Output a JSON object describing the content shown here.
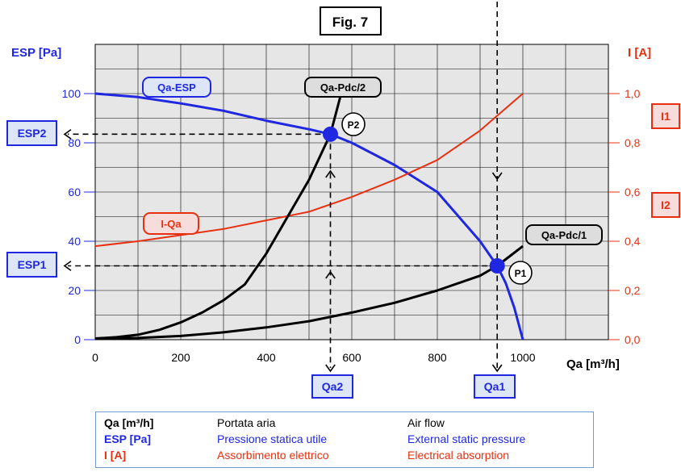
{
  "figure_title": "Fig. 7",
  "colors": {
    "blue": "#1f28e0",
    "red": "#e83010",
    "black": "#000000",
    "plot_bg": "#e6e6e6",
    "label_fill": "#dde6f7",
    "red_label_fill": "#f7dcdc",
    "gray_label_fill": "#dddddd"
  },
  "chart_data": {
    "type": "line",
    "xlabel": "Qa [m³/h]",
    "ylabel_left": "ESP [Pa]",
    "ylabel_right": "I [A]",
    "xlim": [
      0,
      1000
    ],
    "ylim_left": [
      0,
      100
    ],
    "ylim_right": [
      0.0,
      1.0
    ],
    "x_ticks": [
      "0",
      "200",
      "400",
      "600",
      "800",
      "1000"
    ],
    "y_left_ticks": [
      "0",
      "20",
      "40",
      "60",
      "80",
      "100"
    ],
    "y_right_ticks": [
      "0,0",
      "0,2",
      "0,4",
      "0,6",
      "0,8",
      "1,0"
    ],
    "grid": true,
    "series": [
      {
        "name": "Qa-ESP",
        "axis": "left",
        "color": "#1f28e0",
        "x": [
          0,
          100,
          200,
          300,
          400,
          500,
          550,
          600,
          700,
          800,
          900,
          940,
          960,
          980,
          1000
        ],
        "y": [
          100,
          98.6,
          96,
          93,
          89,
          85.5,
          83.5,
          80,
          71,
          60,
          40,
          30,
          23,
          13,
          0
        ]
      },
      {
        "name": "I-Qa",
        "axis": "right",
        "color": "#e83010",
        "x": [
          0,
          100,
          200,
          300,
          400,
          500,
          550,
          600,
          700,
          800,
          900,
          940,
          1000
        ],
        "y": [
          0.38,
          0.4,
          0.425,
          0.45,
          0.485,
          0.52,
          0.55,
          0.58,
          0.65,
          0.73,
          0.85,
          0.91,
          1.0
        ]
      },
      {
        "name": "Qa-Pdc/1",
        "axis": "left",
        "color": "#000000",
        "x": [
          0,
          100,
          200,
          300,
          400,
          500,
          600,
          700,
          800,
          900,
          940,
          1000
        ],
        "y": [
          0.5,
          0.7,
          1.5,
          3,
          5,
          7.5,
          11,
          15,
          20,
          26,
          30,
          38
        ]
      },
      {
        "name": "Qa-Pdc/2",
        "axis": "left",
        "color": "#000000",
        "x": [
          0,
          50,
          100,
          150,
          200,
          250,
          300,
          350,
          400,
          450,
          500,
          550,
          575
        ],
        "y": [
          0.5,
          1,
          2,
          4,
          7,
          11,
          16,
          22.5,
          35,
          50,
          65,
          83.5,
          100
        ]
      }
    ],
    "points": [
      {
        "label": "P1",
        "x": 940,
        "y": 30,
        "color": "#1f28e0"
      },
      {
        "label": "P2",
        "x": 550,
        "y": 83.5,
        "color": "#1f28e0"
      },
      {
        "label": "",
        "x": 940,
        "y": 91,
        "color": "#e83010"
      },
      {
        "label": "",
        "x": 550,
        "y": 55,
        "color": "#e83010"
      }
    ],
    "marker_labels": {
      "esp1": "ESP1",
      "esp2": "ESP2",
      "i1": "I1",
      "i2": "I2",
      "qa1": "Qa1",
      "qa2": "Qa2"
    }
  },
  "legend": [
    {
      "symbol": "Qa [m³/h]",
      "it": "Portata aria",
      "en": "Air flow",
      "color": "#000000"
    },
    {
      "symbol": "ESP [Pa]",
      "it": "Pressione statica utile",
      "en": "External static pressure",
      "color": "#1f28e0"
    },
    {
      "symbol": "I [A]",
      "it": "Assorbimento elettrico",
      "en": "Electrical absorption",
      "color": "#e83010"
    }
  ]
}
